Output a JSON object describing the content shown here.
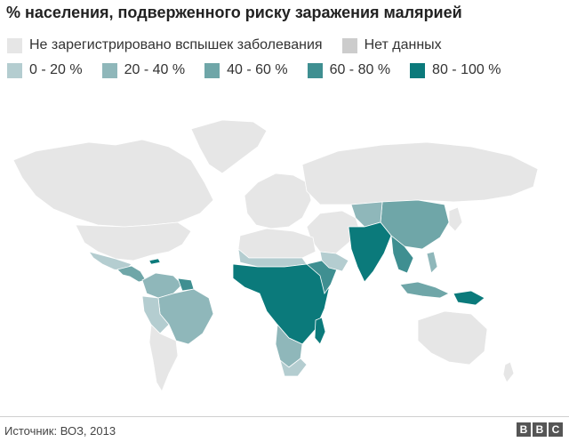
{
  "title": "% населения, подверженного риску заражения малярией",
  "legend": {
    "row1": [
      {
        "label": "Не зарегистрировано вспышек заболевания",
        "color": "#e6e6e6"
      },
      {
        "label": "Нет данных",
        "color": "#cccccc"
      }
    ],
    "row2": [
      {
        "label": "0 - 20 %",
        "color": "#b4cdd0"
      },
      {
        "label": "20 - 40 %",
        "color": "#8fb7ba"
      },
      {
        "label": "40 - 60 %",
        "color": "#6fa6a8"
      },
      {
        "label": "60 - 80 %",
        "color": "#3f8f91"
      },
      {
        "label": "80 - 100 %",
        "color": "#0b7a7b"
      }
    ]
  },
  "source": "Источник: ВОЗ, 2013",
  "logo": [
    "B",
    "B",
    "C"
  ]
}
